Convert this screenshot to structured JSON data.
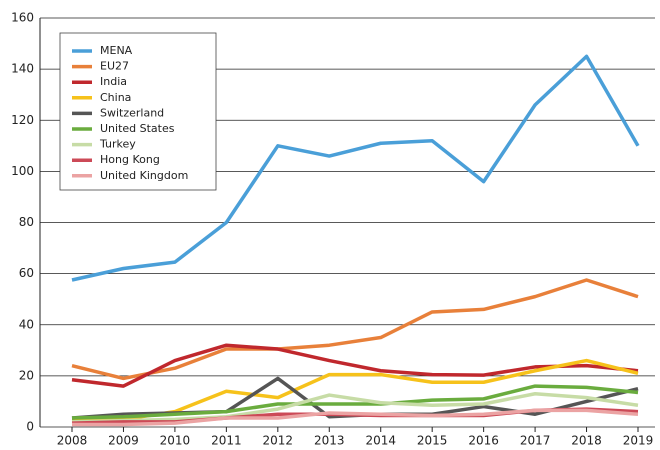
{
  "chart_data": {
    "type": "line",
    "categories": [
      "2008",
      "2009",
      "2010",
      "2011",
      "2012",
      "2013",
      "2014",
      "2015",
      "2016",
      "2017",
      "2018",
      "2019"
    ],
    "series": [
      {
        "name": "MENA",
        "color": "#4a9fd8",
        "values": [
          57.5,
          62,
          64.5,
          80,
          110,
          106,
          111,
          112,
          96,
          126,
          145,
          110
        ]
      },
      {
        "name": "EU27",
        "color": "#e8803a",
        "values": [
          24,
          19,
          23,
          30.5,
          30.5,
          32,
          35,
          45,
          46,
          51,
          57.5,
          51
        ]
      },
      {
        "name": "India",
        "color": "#c0282d",
        "values": [
          18.5,
          16,
          26,
          32,
          30.5,
          26,
          22,
          20.5,
          20.3,
          23.5,
          24,
          22
        ]
      },
      {
        "name": "China",
        "color": "#f6c21b",
        "values": [
          3,
          3,
          6,
          14,
          11.5,
          20.5,
          20.5,
          17.5,
          17.5,
          22,
          26,
          21
        ]
      },
      {
        "name": "Switzerland",
        "color": "#555555",
        "values": [
          3.5,
          5,
          5.5,
          6,
          19,
          4,
          5,
          5,
          8,
          5,
          10,
          15
        ]
      },
      {
        "name": "United States",
        "color": "#6aac3e",
        "values": [
          3.5,
          4,
          5,
          6,
          9,
          9,
          9,
          10.5,
          11,
          16,
          15.5,
          13.5
        ]
      },
      {
        "name": "Turkey",
        "color": "#c7dca6",
        "values": [
          2,
          2.5,
          3,
          4,
          7,
          12.5,
          9.5,
          8.5,
          9,
          13,
          11.5,
          8.5
        ]
      },
      {
        "name": "Hong Kong",
        "color": "#cc4a57",
        "values": [
          1.5,
          2,
          2,
          3.5,
          5,
          5,
          4.5,
          4.5,
          4.5,
          6.5,
          7,
          6
        ]
      },
      {
        "name": "United Kingdom",
        "color": "#eba3a3",
        "values": [
          1,
          1,
          1.5,
          3.5,
          3.5,
          5.5,
          5,
          4.5,
          5,
          6.5,
          6.5,
          5
        ]
      }
    ],
    "ylim": [
      0,
      160
    ],
    "yticks": [
      0,
      20,
      40,
      60,
      80,
      100,
      120,
      140,
      160
    ],
    "grid": true,
    "legend": "top-left"
  }
}
